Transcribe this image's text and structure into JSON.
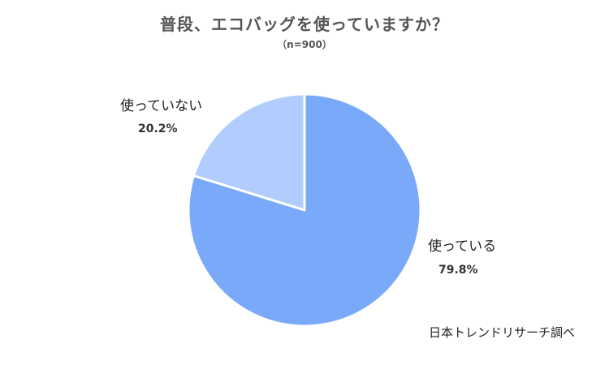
{
  "chart_data": {
    "type": "pie",
    "title": "普段、エコバッグを使っていますか？",
    "subtitle": "（n=900）",
    "slices": [
      {
        "label": "使っている",
        "value": 79.8,
        "value_label": "79.8%",
        "color": "#7aa9fa"
      },
      {
        "label": "使っていない",
        "value": 20.2,
        "value_label": "20.2%",
        "color": "#b0cdfd"
      }
    ],
    "start": "12 o'clock",
    "direction": "clockwise",
    "legend": "none"
  },
  "source": "日本トレンドリサーチ調べ"
}
